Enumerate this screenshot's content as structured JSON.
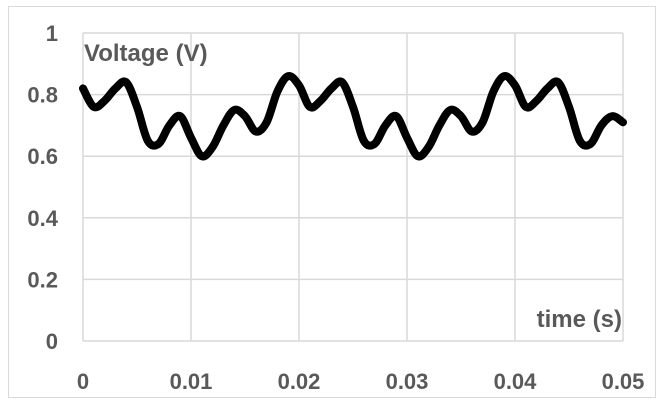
{
  "chart_data": {
    "type": "line",
    "title": "",
    "xlabel": "time (s)",
    "ylabel": "Voltage (V)",
    "xlim": [
      0,
      0.05
    ],
    "ylim": [
      0,
      1
    ],
    "xticks": [
      "0",
      "0.01",
      "0.02",
      "0.03",
      "0.04",
      "0.05"
    ],
    "yticks": [
      "0",
      "0.2",
      "0.4",
      "0.6",
      "0.8",
      "1"
    ],
    "grid": true,
    "legend": "none",
    "series_color": "#000000",
    "series": [
      {
        "x": [
          0,
          0.001,
          0.002,
          0.003,
          0.004,
          0.005,
          0.006,
          0.007,
          0.008,
          0.009,
          0.01,
          0.011,
          0.012,
          0.013,
          0.014,
          0.015,
          0.016,
          0.017,
          0.018,
          0.019,
          0.02,
          0.021,
          0.022,
          0.023,
          0.024,
          0.025,
          0.026,
          0.027,
          0.028,
          0.029,
          0.03,
          0.031,
          0.032,
          0.033,
          0.034,
          0.035,
          0.036,
          0.037,
          0.038,
          0.039,
          0.04,
          0.041,
          0.042,
          0.043,
          0.044,
          0.045,
          0.046,
          0.047,
          0.048,
          0.049,
          0.05
        ],
        "y": [
          0.82,
          0.76,
          0.78,
          0.82,
          0.84,
          0.76,
          0.65,
          0.64,
          0.7,
          0.73,
          0.66,
          0.6,
          0.63,
          0.7,
          0.75,
          0.73,
          0.68,
          0.71,
          0.81,
          0.86,
          0.83,
          0.76,
          0.78,
          0.82,
          0.84,
          0.76,
          0.65,
          0.64,
          0.7,
          0.73,
          0.66,
          0.6,
          0.63,
          0.7,
          0.75,
          0.73,
          0.68,
          0.71,
          0.81,
          0.86,
          0.83,
          0.76,
          0.78,
          0.82,
          0.84,
          0.76,
          0.65,
          0.64,
          0.7,
          0.73,
          0.71
        ]
      }
    ]
  }
}
